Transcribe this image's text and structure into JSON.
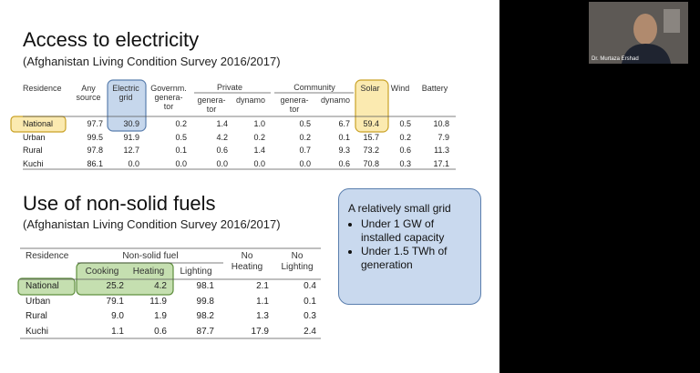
{
  "webcam": {
    "name": "Dr. Murtaza Ershad"
  },
  "slide": {
    "section1": {
      "title": "Access to electricity",
      "subtitle": "(Afghanistan Living Condition Survey 2016/2017)",
      "table": {
        "groups": [
          "Private",
          "Community"
        ],
        "headers": [
          [
            "Residence"
          ],
          [
            "Any",
            "source"
          ],
          [
            "Electric",
            "grid"
          ],
          [
            "Governm.",
            "genera-",
            "tor"
          ],
          [
            "genera-",
            "tor"
          ],
          [
            "dynamo"
          ],
          [
            "genera-",
            "tor"
          ],
          [
            "dynamo"
          ],
          [
            "Solar"
          ],
          [
            "Wind"
          ],
          [
            "Battery"
          ]
        ],
        "rows": [
          [
            "National",
            "97.7",
            "30.9",
            "0.2",
            "1.4",
            "1.0",
            "0.5",
            "6.7",
            "59.4",
            "0.5",
            "10.8"
          ],
          [
            "Urban",
            "99.5",
            "91.9",
            "0.5",
            "4.2",
            "0.2",
            "0.2",
            "0.1",
            "15.7",
            "0.2",
            "7.9"
          ],
          [
            "Rural",
            "97.8",
            "12.7",
            "0.1",
            "0.6",
            "1.4",
            "0.7",
            "9.3",
            "73.2",
            "0.6",
            "11.3"
          ],
          [
            "Kuchi",
            "86.1",
            "0.0",
            "0.0",
            "0.0",
            "0.0",
            "0.0",
            "0.6",
            "70.8",
            "0.3",
            "17.1"
          ]
        ]
      }
    },
    "section2": {
      "title": "Use of non-solid fuels",
      "subtitle": "(Afghanistan Living Condition Survey 2016/2017)",
      "table": {
        "group": "Non-solid fuel",
        "headers": [
          [
            "Residence"
          ],
          [
            "Cooking"
          ],
          [
            "Heating"
          ],
          [
            "Lighting"
          ],
          [
            "No",
            "Heating"
          ],
          [
            "No",
            "Lighting"
          ]
        ],
        "rows": [
          [
            "National",
            "25.2",
            "4.2",
            "98.1",
            "2.1",
            "0.4"
          ],
          [
            "Urban",
            "79.1",
            "11.9",
            "99.8",
            "1.1",
            "0.1"
          ],
          [
            "Rural",
            "9.0",
            "1.9",
            "98.2",
            "1.3",
            "0.3"
          ],
          [
            "Kuchi",
            "1.1",
            "0.6",
            "87.7",
            "17.9",
            "2.4"
          ]
        ]
      }
    },
    "callout": {
      "heading": "A relatively small grid",
      "bullets": [
        "Under 1 GW of installed capacity",
        "Under 1.5 TWh of generation"
      ]
    }
  }
}
